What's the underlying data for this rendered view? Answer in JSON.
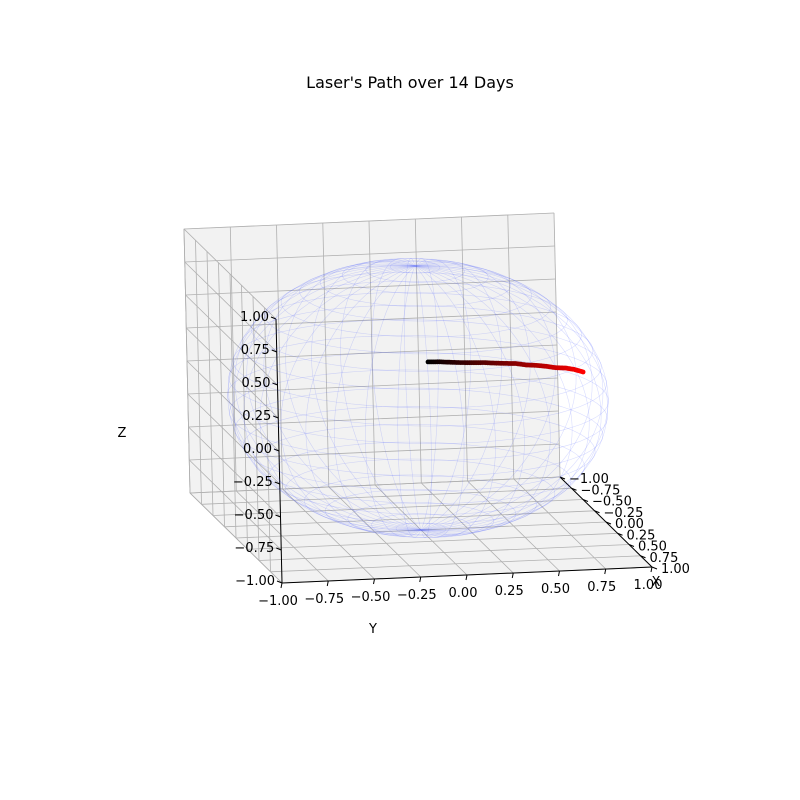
{
  "chart_data": {
    "type": "scatter",
    "title": "Laser's Path over 14 Days",
    "xlabel": "X",
    "ylabel": "Y",
    "zlabel": "Z",
    "xlim": [
      -1.0,
      1.0
    ],
    "ylim": [
      -1.0,
      1.0
    ],
    "zlim": [
      -1.0,
      1.0
    ],
    "x_ticks": [
      "−1.00",
      "−0.75",
      "−0.50",
      "−0.25",
      "0.00",
      "0.25",
      "0.50",
      "0.75",
      "1.00"
    ],
    "y_ticks": [
      "−1.00",
      "−0.75",
      "−0.50",
      "−0.25",
      "0.00",
      "0.25",
      "0.50",
      "0.75",
      "1.00"
    ],
    "z_ticks": [
      "−1.00",
      "−0.75",
      "−0.50",
      "−0.25",
      "0.00",
      "0.25",
      "0.50",
      "0.75",
      "1.00"
    ],
    "grid": true,
    "sphere_wireframe": {
      "radius": 1.0,
      "color": "#0000ff"
    },
    "path": {
      "color_start": "#000000",
      "color_end": "#ff0000",
      "y": [
        -0.14,
        -0.08,
        -0.02,
        0.04,
        0.1,
        0.16,
        0.22,
        0.28,
        0.34,
        0.4,
        0.46,
        0.52,
        0.58,
        0.64,
        0.7,
        0.76
      ],
      "z": [
        0.56,
        0.56,
        0.555,
        0.55,
        0.545,
        0.54,
        0.53,
        0.52,
        0.51,
        0.49,
        0.475,
        0.455,
        0.43,
        0.41,
        0.38,
        0.34
      ]
    }
  }
}
